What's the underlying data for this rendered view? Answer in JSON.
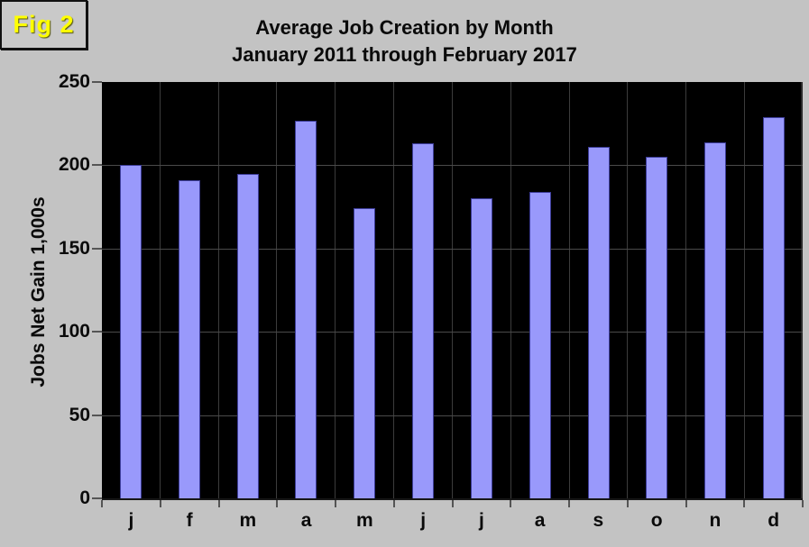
{
  "figure_label": "Fig 2",
  "title": {
    "line1": "Average Job Creation by Month",
    "line2": "January 2011 through February 2017"
  },
  "colors": {
    "page_background": "#c3c3c3",
    "plot_background": "#000000",
    "bar_fill": "#9999fb",
    "bar_border": "#3d3d99",
    "gridline": "#4a4a4a",
    "figure_label_text": "#ffff00",
    "text": "#0a0a0a"
  },
  "chart_data": {
    "type": "bar",
    "categories": [
      "j",
      "f",
      "m",
      "a",
      "m",
      "j",
      "j",
      "a",
      "s",
      "o",
      "n",
      "d"
    ],
    "values": [
      200,
      191,
      195,
      227,
      174,
      213,
      180,
      184,
      211,
      205,
      214,
      229
    ],
    "title": "Average Job Creation by Month — January 2011 through February 2017",
    "xlabel": "",
    "ylabel": "Jobs Net Gain 1,000s",
    "ylim": [
      0,
      250
    ],
    "yticks": [
      0,
      50,
      100,
      150,
      200,
      250
    ],
    "grid": true,
    "legend_position": "none"
  }
}
